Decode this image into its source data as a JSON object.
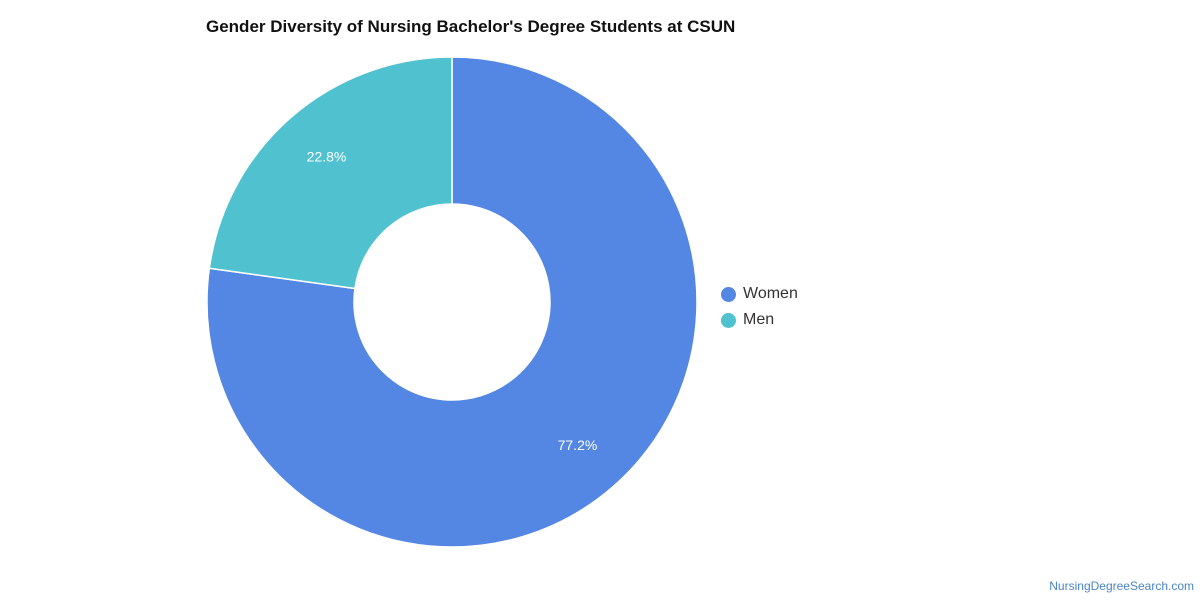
{
  "chart_data": {
    "type": "pie",
    "title": "Gender Diversity of Nursing Bachelor's Degree Students at CSUN",
    "slices": [
      {
        "name": "Women",
        "value": 77.2,
        "label": "77.2%",
        "color": "#5486e3"
      },
      {
        "name": "Men",
        "value": 22.8,
        "label": "22.8%",
        "color": "#50c2cf"
      }
    ],
    "donut": true,
    "legend_position": "right"
  },
  "source": "NursingDegreeSearch.com"
}
